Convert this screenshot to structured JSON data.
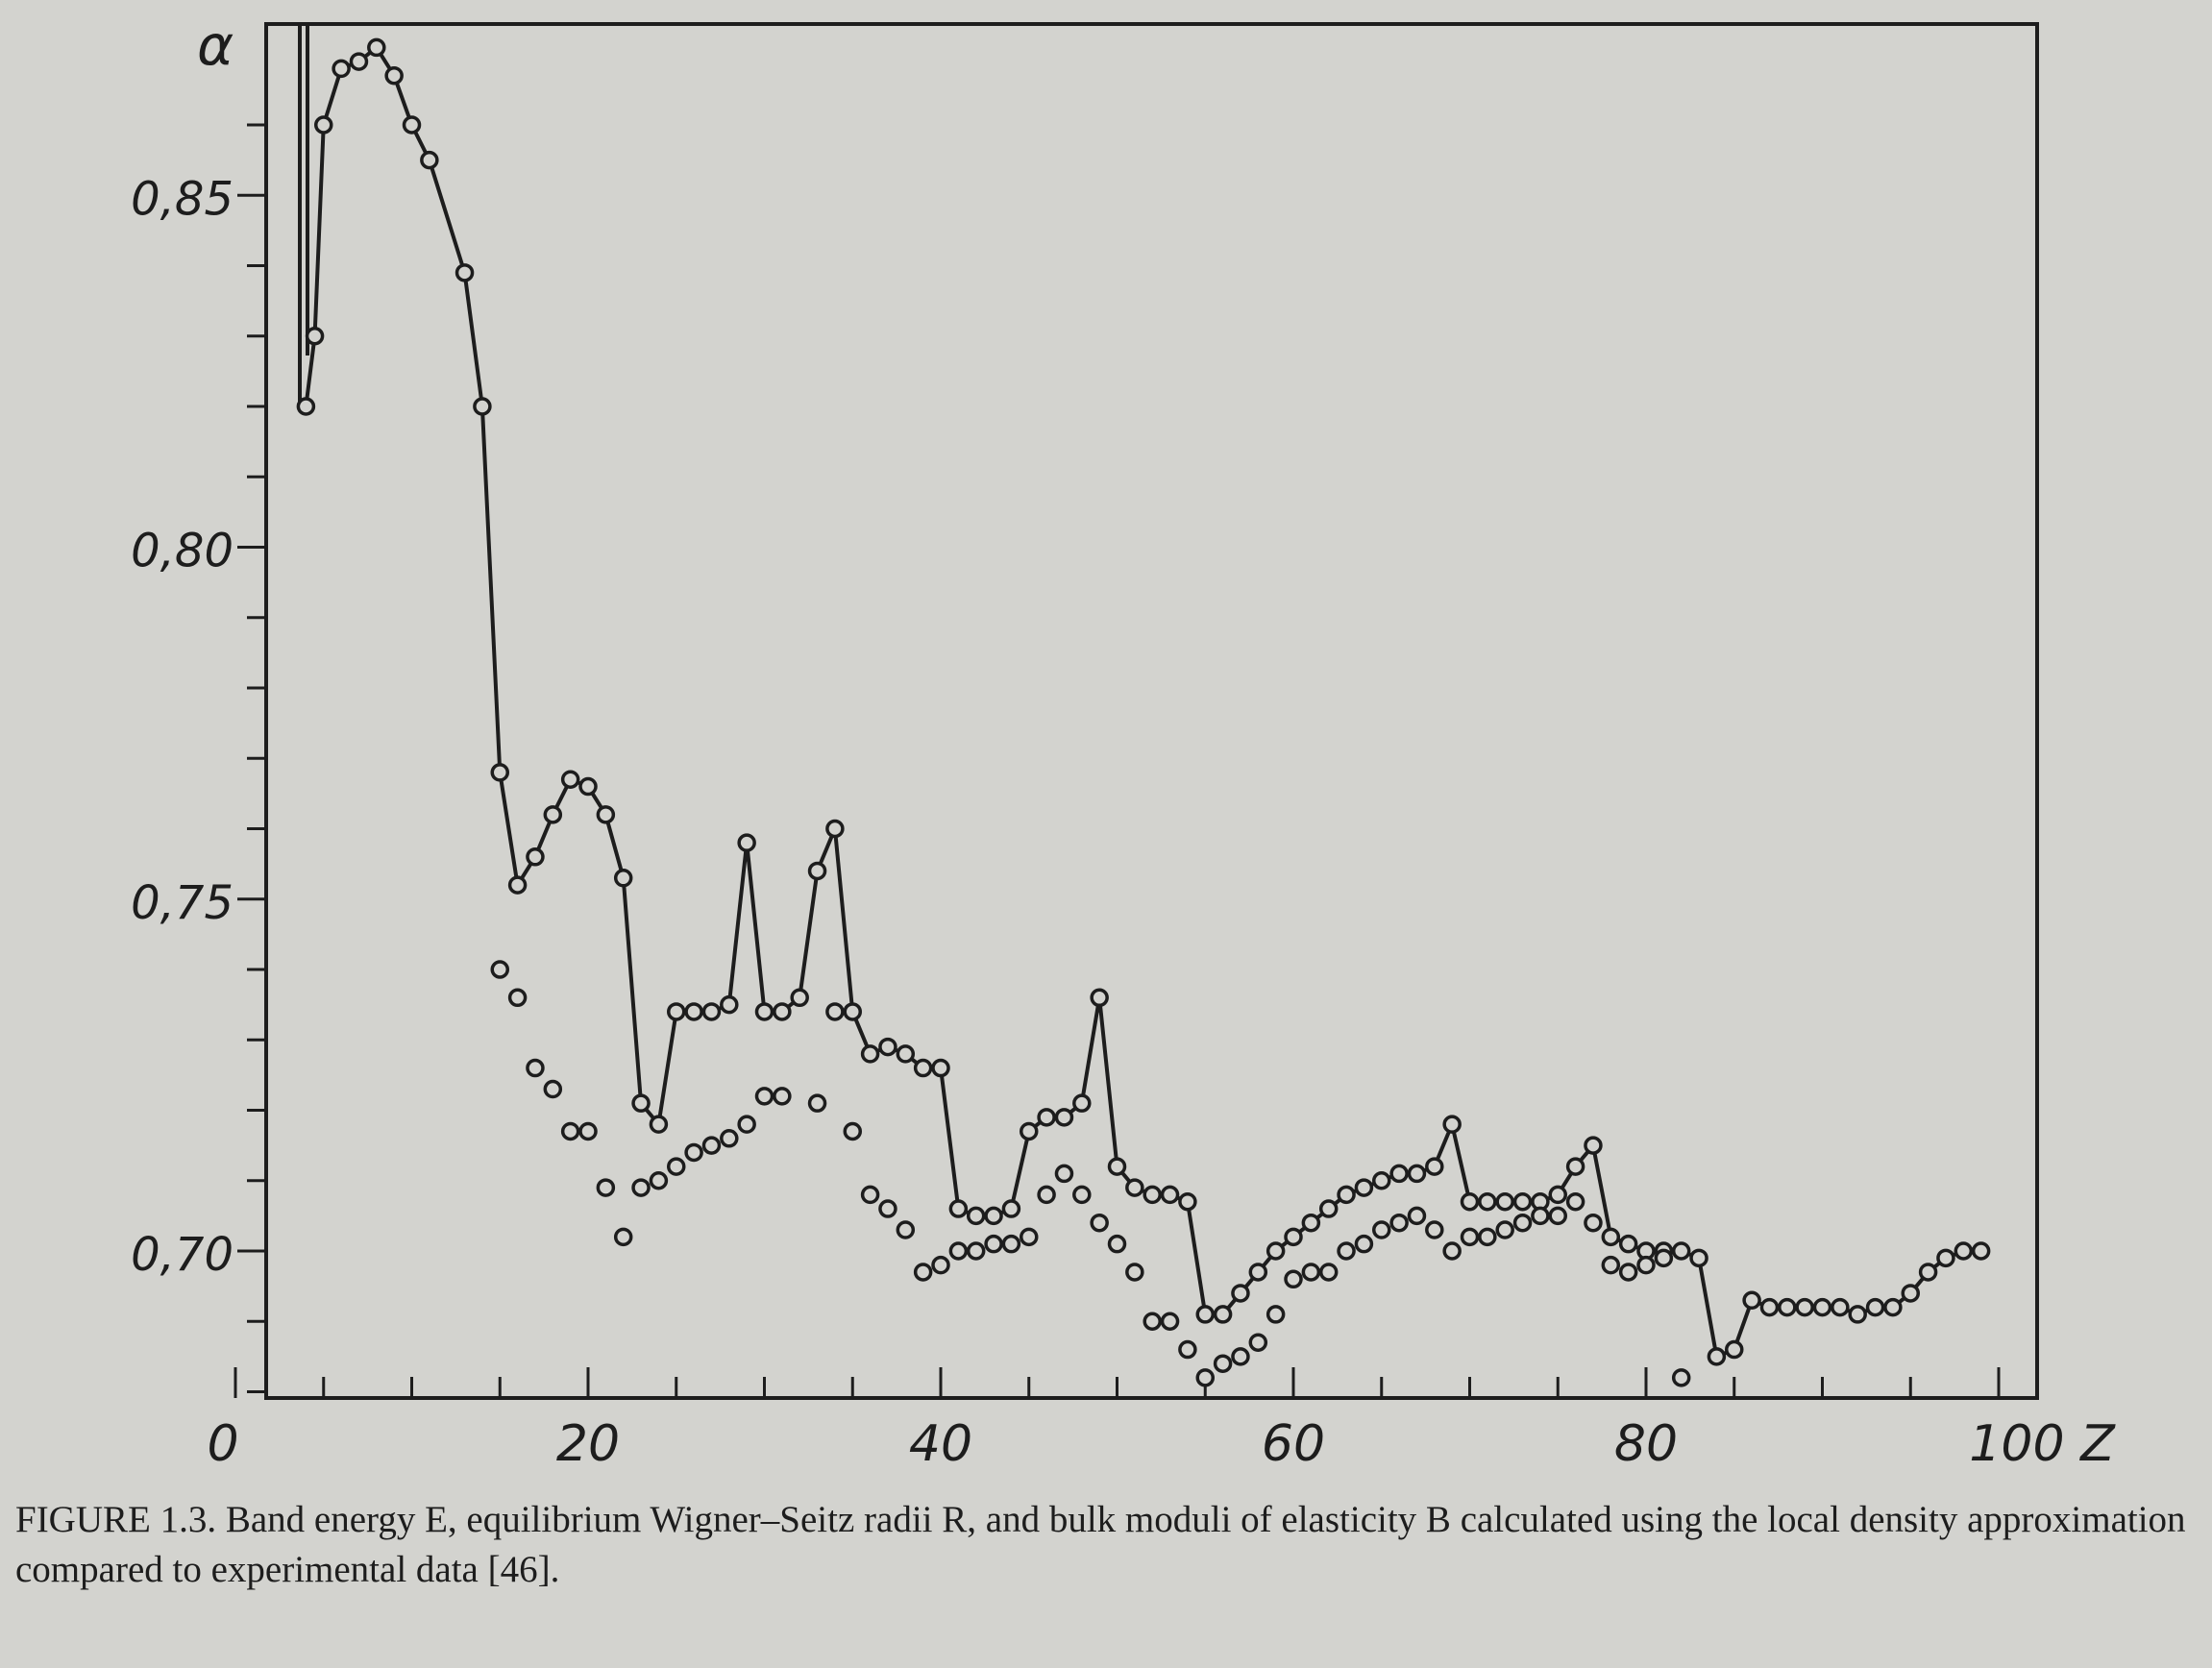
{
  "chart_data": {
    "type": "line",
    "ylabel": "α",
    "xlabel": "Z",
    "xlim": [
      0,
      103
    ],
    "ylim": [
      0.68,
      0.875
    ],
    "x_ticks": [
      {
        "value": 0,
        "label": "0"
      },
      {
        "value": 20,
        "label": "20"
      },
      {
        "value": 40,
        "label": "40"
      },
      {
        "value": 60,
        "label": "60"
      },
      {
        "value": 80,
        "label": "80"
      },
      {
        "value": 100,
        "label": "100 Z"
      }
    ],
    "y_ticks": [
      {
        "value": 0.85,
        "label": "0,85"
      },
      {
        "value": 0.8,
        "label": "0,80"
      },
      {
        "value": 0.75,
        "label": "0,75"
      },
      {
        "value": 0.7,
        "label": "0,70"
      }
    ],
    "grid": false,
    "series": [
      {
        "style": "line-with-open-circles",
        "points": [
          [
            4,
            0.82
          ],
          [
            4.5,
            0.83
          ],
          [
            5,
            0.86
          ],
          [
            6,
            0.868
          ],
          [
            7,
            0.869
          ],
          [
            8,
            0.871
          ],
          [
            9,
            0.867
          ],
          [
            10,
            0.86
          ],
          [
            11,
            0.855
          ],
          [
            13,
            0.839
          ],
          [
            14,
            0.82
          ],
          [
            15,
            0.768
          ],
          [
            16,
            0.752
          ],
          [
            17,
            0.756
          ],
          [
            18,
            0.762
          ],
          [
            19,
            0.767
          ],
          [
            20,
            0.766
          ],
          [
            21,
            0.762
          ],
          [
            22,
            0.753
          ],
          [
            23,
            0.721
          ],
          [
            24,
            0.718
          ],
          [
            25,
            0.734
          ],
          [
            26,
            0.734
          ],
          [
            27,
            0.734
          ],
          [
            28,
            0.735
          ],
          [
            29,
            0.758
          ],
          [
            30,
            0.734
          ],
          [
            31,
            0.734
          ],
          [
            32,
            0.736
          ],
          [
            33,
            0.754
          ],
          [
            34,
            0.76
          ],
          [
            35,
            0.734
          ],
          [
            36,
            0.728
          ],
          [
            37,
            0.729
          ],
          [
            38,
            0.728
          ],
          [
            39,
            0.726
          ],
          [
            40,
            0.726
          ],
          [
            41,
            0.706
          ],
          [
            42,
            0.705
          ],
          [
            43,
            0.705
          ],
          [
            44,
            0.706
          ],
          [
            45,
            0.717
          ],
          [
            46,
            0.719
          ],
          [
            47,
            0.719
          ],
          [
            48,
            0.721
          ],
          [
            49,
            0.736
          ],
          [
            50,
            0.712
          ],
          [
            51,
            0.709
          ],
          [
            52,
            0.708
          ],
          [
            53,
            0.708
          ],
          [
            54,
            0.707
          ],
          [
            55,
            0.691
          ],
          [
            56,
            0.691
          ],
          [
            57,
            0.694
          ],
          [
            58,
            0.697
          ],
          [
            59,
            0.7
          ],
          [
            60,
            0.702
          ],
          [
            61,
            0.704
          ],
          [
            62,
            0.706
          ],
          [
            63,
            0.708
          ],
          [
            64,
            0.709
          ],
          [
            65,
            0.71
          ],
          [
            66,
            0.711
          ],
          [
            67,
            0.711
          ],
          [
            68,
            0.712
          ],
          [
            69,
            0.718
          ],
          [
            70,
            0.707
          ],
          [
            71,
            0.707
          ],
          [
            72,
            0.707
          ],
          [
            73,
            0.707
          ],
          [
            74,
            0.707
          ],
          [
            75,
            0.708
          ],
          [
            76,
            0.712
          ],
          [
            77,
            0.715
          ],
          [
            78,
            0.702
          ],
          [
            79,
            0.701
          ],
          [
            80,
            0.7
          ],
          [
            81,
            0.7
          ],
          [
            82,
            0.7
          ],
          [
            83,
            0.699
          ],
          [
            84,
            0.685
          ],
          [
            85,
            0.686
          ],
          [
            86,
            0.693
          ],
          [
            87,
            0.692
          ],
          [
            88,
            0.692
          ],
          [
            89,
            0.692
          ],
          [
            90,
            0.692
          ],
          [
            91,
            0.692
          ],
          [
            92,
            0.691
          ],
          [
            93,
            0.692
          ],
          [
            94,
            0.692
          ],
          [
            95,
            0.694
          ],
          [
            96,
            0.697
          ],
          [
            97,
            0.699
          ],
          [
            98,
            0.7
          ],
          [
            99,
            0.7
          ]
        ]
      },
      {
        "style": "open-circles",
        "points": [
          [
            15,
            0.74
          ],
          [
            16,
            0.736
          ],
          [
            17,
            0.726
          ],
          [
            18,
            0.723
          ],
          [
            19,
            0.717
          ],
          [
            20,
            0.717
          ],
          [
            21,
            0.709
          ],
          [
            22,
            0.702
          ],
          [
            23,
            0.709
          ],
          [
            24,
            0.71
          ],
          [
            25,
            0.712
          ],
          [
            26,
            0.714
          ],
          [
            27,
            0.715
          ],
          [
            28,
            0.716
          ],
          [
            29,
            0.718
          ],
          [
            30,
            0.722
          ],
          [
            31,
            0.722
          ],
          [
            33,
            0.721
          ],
          [
            34,
            0.734
          ],
          [
            35,
            0.717
          ],
          [
            36,
            0.708
          ],
          [
            37,
            0.706
          ],
          [
            38,
            0.703
          ],
          [
            39,
            0.697
          ],
          [
            40,
            0.698
          ],
          [
            41,
            0.7
          ],
          [
            42,
            0.7
          ],
          [
            43,
            0.701
          ],
          [
            44,
            0.701
          ],
          [
            45,
            0.702
          ],
          [
            46,
            0.708
          ],
          [
            47,
            0.711
          ],
          [
            48,
            0.708
          ],
          [
            49,
            0.704
          ],
          [
            50,
            0.701
          ],
          [
            51,
            0.697
          ],
          [
            52,
            0.69
          ],
          [
            53,
            0.69
          ],
          [
            54,
            0.686
          ],
          [
            55,
            0.682
          ],
          [
            56,
            0.684
          ],
          [
            57,
            0.685
          ],
          [
            58,
            0.687
          ],
          [
            59,
            0.691
          ],
          [
            60,
            0.696
          ],
          [
            61,
            0.697
          ],
          [
            62,
            0.697
          ],
          [
            63,
            0.7
          ],
          [
            64,
            0.701
          ],
          [
            65,
            0.703
          ],
          [
            66,
            0.704
          ],
          [
            67,
            0.705
          ],
          [
            68,
            0.703
          ],
          [
            69,
            0.7
          ],
          [
            70,
            0.702
          ],
          [
            71,
            0.702
          ],
          [
            72,
            0.703
          ],
          [
            73,
            0.704
          ],
          [
            74,
            0.705
          ],
          [
            75,
            0.705
          ],
          [
            76,
            0.707
          ],
          [
            77,
            0.704
          ],
          [
            78,
            0.698
          ],
          [
            79,
            0.697
          ],
          [
            80,
            0.698
          ],
          [
            81,
            0.699
          ],
          [
            82,
            0.682
          ]
        ]
      }
    ]
  },
  "caption": {
    "label": "FIGURE 1.3.",
    "text": "Band energy E, equilibrium Wigner–Seitz radii R, and bulk moduli of elasticity B calculated using the local density approximation compared to experimental data [46]."
  }
}
